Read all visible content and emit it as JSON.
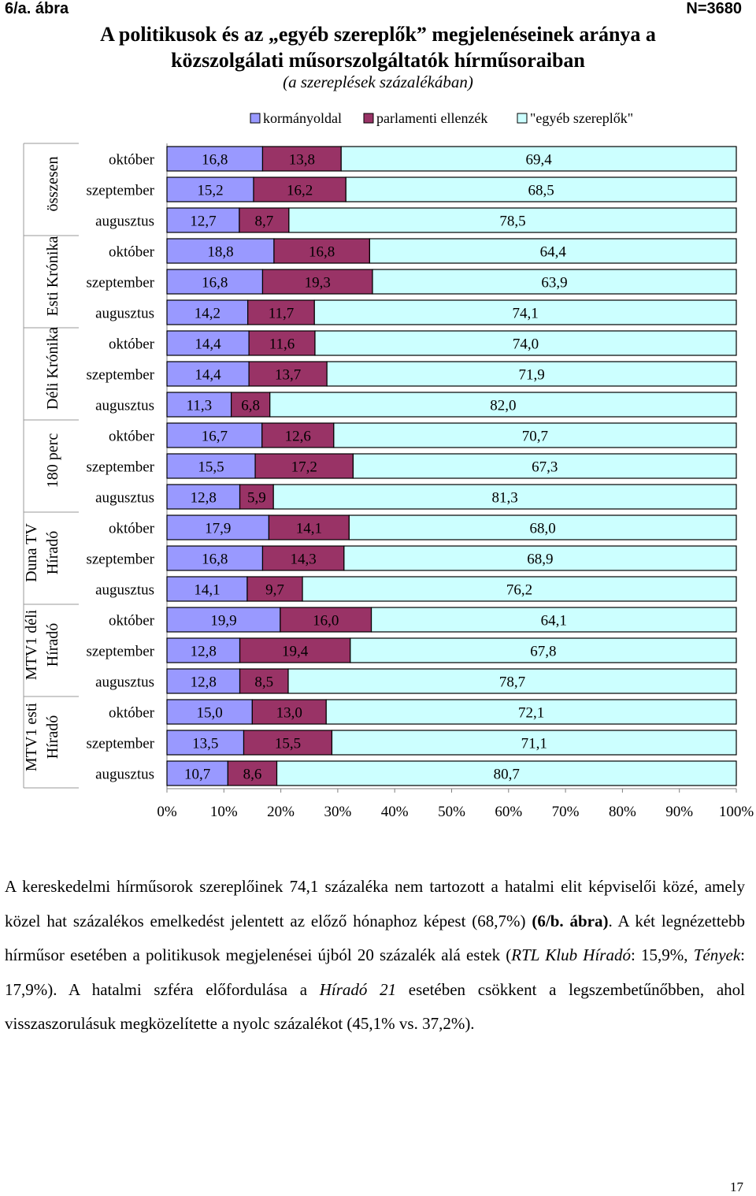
{
  "header": {
    "figure_label": "6/a. ábra",
    "sample_size": "N=3680"
  },
  "title_line1": "A politikusok és az „egyéb szereplők” megjelenéseinek aránya a",
  "title_line2": "közszolgálati műsorszolgáltatók hírműsoraiban",
  "subtitle": "(a szereplések százalékában)",
  "colors": {
    "kormanyoldal": "#9999ff",
    "ellenzek": "#993366",
    "egyeb": "#ccffff"
  },
  "chart_data": {
    "type": "bar",
    "orientation": "horizontal-stacked-100",
    "legend_position": "top",
    "xlim": [
      0,
      100
    ],
    "x_ticks": [
      "0%",
      "10%",
      "20%",
      "30%",
      "40%",
      "50%",
      "60%",
      "70%",
      "80%",
      "90%",
      "100%"
    ],
    "series_names": [
      "kormányoldal",
      "parlamenti ellenzék",
      "\"egyéb szereplők\""
    ],
    "groups": [
      {
        "label_lines": [
          "összesen"
        ],
        "rows": [
          {
            "month": "október",
            "values": [
              "16,8",
              "13,8",
              "69,4"
            ]
          },
          {
            "month": "szeptember",
            "values": [
              "15,2",
              "16,2",
              "68,5"
            ]
          },
          {
            "month": "augusztus",
            "values": [
              "12,7",
              "8,7",
              "78,5"
            ]
          }
        ]
      },
      {
        "label_lines": [
          "Esti Krónika"
        ],
        "rows": [
          {
            "month": "október",
            "values": [
              "18,8",
              "16,8",
              "64,4"
            ]
          },
          {
            "month": "szeptember",
            "values": [
              "16,8",
              "19,3",
              "63,9"
            ]
          },
          {
            "month": "augusztus",
            "values": [
              "14,2",
              "11,7",
              "74,1"
            ]
          }
        ]
      },
      {
        "label_lines": [
          "Déli Krónika"
        ],
        "rows": [
          {
            "month": "október",
            "values": [
              "14,4",
              "11,6",
              "74,0"
            ]
          },
          {
            "month": "szeptember",
            "values": [
              "14,4",
              "13,7",
              "71,9"
            ]
          },
          {
            "month": "augusztus",
            "values": [
              "11,3",
              "6,8",
              "82,0"
            ]
          }
        ]
      },
      {
        "label_lines": [
          "180 perc"
        ],
        "rows": [
          {
            "month": "október",
            "values": [
              "16,7",
              "12,6",
              "70,7"
            ]
          },
          {
            "month": "szeptember",
            "values": [
              "15,5",
              "17,2",
              "67,3"
            ]
          },
          {
            "month": "augusztus",
            "values": [
              "12,8",
              "5,9",
              "81,3"
            ]
          }
        ]
      },
      {
        "label_lines": [
          "Duna TV",
          "Híradó"
        ],
        "rows": [
          {
            "month": "október",
            "values": [
              "17,9",
              "14,1",
              "68,0"
            ]
          },
          {
            "month": "szeptember",
            "values": [
              "16,8",
              "14,3",
              "68,9"
            ]
          },
          {
            "month": "augusztus",
            "values": [
              "14,1",
              "9,7",
              "76,2"
            ]
          }
        ]
      },
      {
        "label_lines": [
          "MTV1 déli",
          "Híradó"
        ],
        "rows": [
          {
            "month": "október",
            "values": [
              "19,9",
              "16,0",
              "64,1"
            ]
          },
          {
            "month": "szeptember",
            "values": [
              "12,8",
              "19,4",
              "67,8"
            ]
          },
          {
            "month": "augusztus",
            "values": [
              "12,8",
              "8,5",
              "78,7"
            ]
          }
        ]
      },
      {
        "label_lines": [
          "MTV1 esti",
          "Híradó"
        ],
        "rows": [
          {
            "month": "október",
            "values": [
              "15,0",
              "13,0",
              "72,1"
            ]
          },
          {
            "month": "szeptember",
            "values": [
              "13,5",
              "15,5",
              "71,1"
            ]
          },
          {
            "month": "augusztus",
            "values": [
              "10,7",
              "8,6",
              "80,7"
            ]
          }
        ]
      }
    ]
  },
  "paragraph": {
    "p1": "A kereskedelmi hírműsorok szereplőinek 74,1 százaléka nem tartozott a hatalmi elit képviselői közé, amely közel hat százalékos emelkedést jelentett az előző hónaphoz képest (68,7%) ",
    "p2_bold": "(6/b. ábra)",
    "p3": ". A két legnézettebb hírműsor esetében a politikusok megjelenései újból 20 százalék alá estek (",
    "p4_italic": "RTL Klub Híradó",
    "p5": ": 15,9%, ",
    "p6_italic": "Tények",
    "p7": ": 17,9%). A hatalmi szféra előfordulása a ",
    "p8_italic": "Híradó 21",
    "p9": " esetében csökkent a legszembetűnőbben, ahol visszaszorulásuk megközelítette a nyolc százalékot (45,1% vs. 37,2%)."
  },
  "page_number": "17"
}
